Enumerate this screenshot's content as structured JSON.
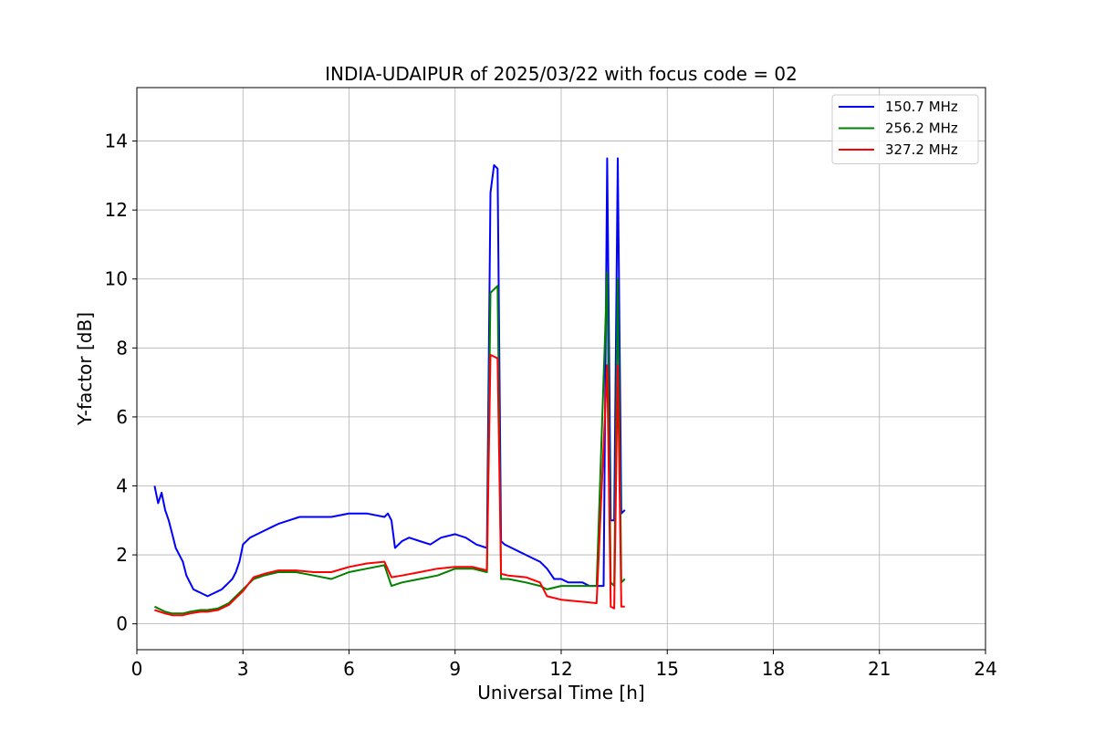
{
  "chart_data": {
    "type": "line",
    "title": "INDIA-UDAIPUR of 2025/03/22 with focus code = 02",
    "xlabel": "Universal Time [h]",
    "ylabel": "Y-factor [dB]",
    "xlim": [
      0,
      24
    ],
    "ylim": [
      -0.75,
      15.55
    ],
    "xticks": [
      "0",
      "3",
      "6",
      "9",
      "12",
      "15",
      "18",
      "21",
      "24"
    ],
    "yticks": [
      "0",
      "2",
      "4",
      "6",
      "8",
      "10",
      "12",
      "14"
    ],
    "grid": true,
    "legend_position": "top-right",
    "series": [
      {
        "name": "150.7 MHz",
        "color": "#0000ff",
        "x": [
          0.5,
          0.6,
          0.7,
          0.8,
          0.9,
          1.0,
          1.1,
          1.2,
          1.3,
          1.4,
          1.5,
          1.6,
          1.7,
          1.8,
          1.9,
          2.0,
          2.1,
          2.2,
          2.3,
          2.4,
          2.5,
          2.6,
          2.7,
          2.8,
          2.9,
          3.0,
          3.2,
          3.4,
          3.6,
          3.8,
          4.0,
          4.3,
          4.6,
          5.0,
          5.5,
          6.0,
          6.5,
          7.0,
          7.1,
          7.2,
          7.3,
          7.5,
          7.7,
          8.0,
          8.3,
          8.6,
          9.0,
          9.3,
          9.6,
          9.9,
          10.0,
          10.1,
          10.2,
          10.3,
          10.4,
          10.6,
          10.8,
          11.0,
          11.2,
          11.4,
          11.6,
          11.8,
          12.0,
          12.2,
          12.4,
          12.6,
          12.8,
          13.0,
          13.2,
          13.3,
          13.4,
          13.5,
          13.6,
          13.7,
          13.8
        ],
        "y": [
          4.0,
          3.5,
          3.8,
          3.3,
          3.0,
          2.6,
          2.2,
          2.0,
          1.8,
          1.4,
          1.2,
          1.0,
          0.95,
          0.9,
          0.85,
          0.8,
          0.85,
          0.9,
          0.95,
          1.0,
          1.1,
          1.2,
          1.3,
          1.5,
          1.8,
          2.3,
          2.5,
          2.6,
          2.7,
          2.8,
          2.9,
          3.0,
          3.1,
          3.1,
          3.1,
          3.2,
          3.2,
          3.1,
          3.2,
          3.0,
          2.2,
          2.4,
          2.5,
          2.4,
          2.3,
          2.5,
          2.6,
          2.5,
          2.3,
          2.2,
          12.5,
          13.3,
          13.2,
          2.4,
          2.3,
          2.2,
          2.1,
          2.0,
          1.9,
          1.8,
          1.6,
          1.3,
          1.3,
          1.2,
          1.2,
          1.2,
          1.1,
          1.1,
          1.1,
          13.5,
          3.0,
          3.0,
          13.5,
          3.2,
          3.3
        ]
      },
      {
        "name": "256.2 MHz",
        "color": "#008000",
        "x": [
          0.5,
          0.8,
          1.0,
          1.3,
          1.5,
          1.8,
          2.0,
          2.3,
          2.6,
          2.8,
          3.0,
          3.3,
          3.6,
          4.0,
          4.5,
          5.0,
          5.5,
          6.0,
          6.5,
          7.0,
          7.2,
          7.5,
          8.0,
          8.5,
          9.0,
          9.5,
          9.9,
          10.0,
          10.2,
          10.3,
          10.5,
          11.0,
          11.4,
          11.6,
          12.0,
          12.5,
          13.0,
          13.3,
          13.4,
          13.5,
          13.6,
          13.7,
          13.8
        ],
        "y": [
          0.5,
          0.35,
          0.3,
          0.3,
          0.35,
          0.4,
          0.4,
          0.45,
          0.6,
          0.8,
          1.0,
          1.3,
          1.4,
          1.5,
          1.5,
          1.4,
          1.3,
          1.5,
          1.6,
          1.7,
          1.1,
          1.2,
          1.3,
          1.4,
          1.6,
          1.6,
          1.5,
          9.6,
          9.8,
          1.3,
          1.3,
          1.2,
          1.1,
          1.0,
          1.1,
          1.1,
          1.1,
          10.2,
          1.2,
          1.1,
          10.0,
          1.2,
          1.3
        ]
      },
      {
        "name": "327.2 MHz",
        "color": "#ff0000",
        "x": [
          0.5,
          0.8,
          1.0,
          1.3,
          1.5,
          1.8,
          2.0,
          2.3,
          2.6,
          2.8,
          3.0,
          3.3,
          3.6,
          4.0,
          4.5,
          5.0,
          5.5,
          6.0,
          6.5,
          7.0,
          7.2,
          7.5,
          8.0,
          8.5,
          9.0,
          9.5,
          9.9,
          10.0,
          10.2,
          10.3,
          10.5,
          11.0,
          11.4,
          11.6,
          12.0,
          12.5,
          13.0,
          13.3,
          13.4,
          13.5,
          13.6,
          13.7,
          13.8
        ],
        "y": [
          0.4,
          0.3,
          0.25,
          0.25,
          0.3,
          0.35,
          0.35,
          0.4,
          0.55,
          0.75,
          0.95,
          1.35,
          1.45,
          1.55,
          1.55,
          1.5,
          1.5,
          1.65,
          1.75,
          1.8,
          1.35,
          1.4,
          1.5,
          1.6,
          1.65,
          1.65,
          1.55,
          7.8,
          7.7,
          1.45,
          1.4,
          1.35,
          1.2,
          0.8,
          0.7,
          0.65,
          0.6,
          7.5,
          0.5,
          0.45,
          7.5,
          0.5,
          0.5
        ]
      }
    ]
  }
}
